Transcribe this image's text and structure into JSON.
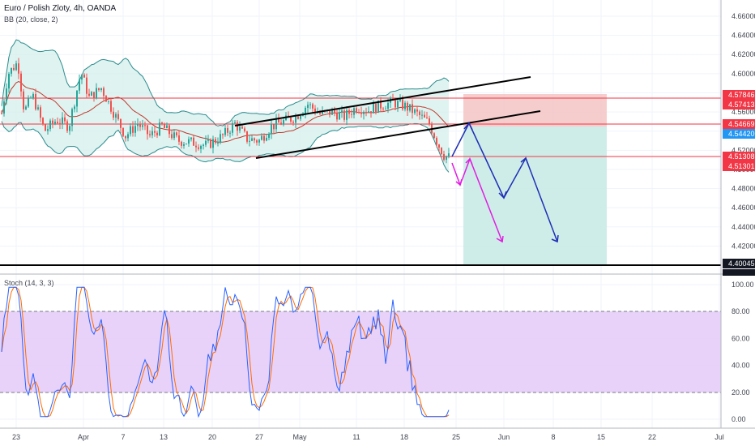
{
  "header": {
    "title": "Euro / Polish Zloty, 4h, OANDA",
    "indicator": "BB (20, close, 2)",
    "oscillator": "Stoch (14, 3, 3)"
  },
  "colors": {
    "candle_up": "#26a69a",
    "candle_down": "#ef5350",
    "bb_band": "#2b8c8c",
    "bb_fill": "#d7f0ee",
    "bb_basis": "#c0392b",
    "level_line": "#f23645",
    "stop_zone": "#f5c4c4",
    "target_zone": "#c9ebe6",
    "projection_blue": "#1e2fb5",
    "projection_magenta": "#e01ee0",
    "stoch_band": "#e5cdfa",
    "stoch_k": "#2962ff",
    "stoch_d": "#ff6d00"
  },
  "chart_data": [
    {
      "type": "candlestick",
      "title": "Euro / Polish Zloty, 4h, OANDA",
      "y_ticks": [
        "4.42000",
        "4.44000",
        "4.46000",
        "4.48000",
        "4.50000",
        "4.52000",
        "4.54000",
        "4.56000",
        "4.58000",
        "4.60000",
        "4.62000",
        "4.64000",
        "4.66000"
      ],
      "x_ticks": [
        "23",
        "Apr",
        "7",
        "13",
        "20",
        "27",
        "May",
        "11",
        "18",
        "25",
        "Jun",
        "8",
        "15",
        "22",
        "Jul"
      ],
      "price_tags": [
        {
          "label": "4.57846",
          "color": "#f23645"
        },
        {
          "label": "4.57413",
          "color": "#f23645"
        },
        {
          "label": "4.54669",
          "color": "#f23645"
        },
        {
          "label": "4.54420",
          "color": "#2196f3"
        },
        {
          "label": "4.51308",
          "color": "#f23645"
        },
        {
          "label": "4.51301",
          "color": "#f23645"
        },
        {
          "label": "4.40045",
          "color": "#131722"
        }
      ],
      "levels": [
        4.5741,
        4.5467,
        4.5131,
        4.4005
      ],
      "channel_lines": [
        {
          "from": [
            "27",
            "4.5127"
          ],
          "to": [
            "Jun 8",
            "4.5978"
          ]
        },
        {
          "from": [
            "20",
            "4.5260"
          ],
          "to": [
            "Jun 8",
            "4.5640"
          ]
        }
      ],
      "position": {
        "entry": 4.5442,
        "stop": 4.5785,
        "target": 4.4005,
        "start": "May 26",
        "end": "Jun 15"
      },
      "ylim": [
        4.39,
        4.67
      ],
      "grid": true
    },
    {
      "type": "line",
      "title": "Stoch (14, 3, 3)",
      "y_ticks": [
        "0.00",
        "20.00",
        "40.00",
        "60.00",
        "80.00",
        "100.00"
      ],
      "ylim": [
        -6,
        104
      ],
      "band": [
        20,
        80
      ],
      "grid": true
    }
  ]
}
